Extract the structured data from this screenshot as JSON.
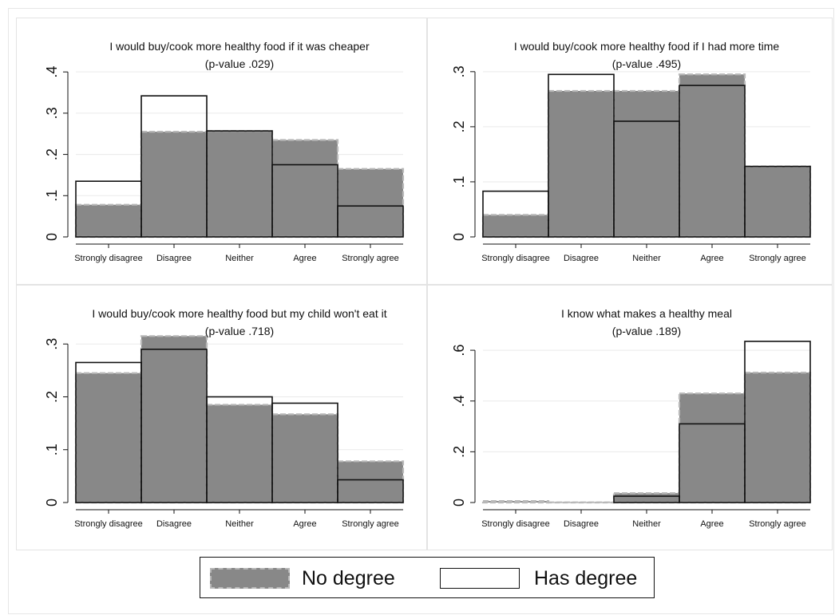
{
  "legend": {
    "no_degree": "No degree",
    "has_degree": "Has degree",
    "no_degree_color": "#888888",
    "no_degree_edge_color": "#b8b8b8",
    "has_degree_edge_color": "#111111"
  },
  "chart_data": [
    {
      "type": "bar",
      "title": "I would buy/cook more healthy food if it was cheaper",
      "subtitle": "(p-value .029)",
      "categories": [
        "Strongly disagree",
        "Disagree",
        "Neither",
        "Agree",
        "Strongly agree"
      ],
      "series": [
        {
          "name": "No degree",
          "values": [
            0.078,
            0.255,
            0.257,
            0.235,
            0.165
          ]
        },
        {
          "name": "Has degree",
          "values": [
            0.135,
            0.342,
            0.257,
            0.175,
            0.075
          ]
        }
      ],
      "yticks": [
        0,
        0.1,
        0.2,
        0.3,
        0.4
      ],
      "ytick_labels": [
        "0",
        ".1",
        ".2",
        ".3",
        ".4"
      ],
      "ylim": [
        0,
        0.41
      ],
      "grid": true
    },
    {
      "type": "bar",
      "title": "I would buy/cook more healthy food if I had more time",
      "subtitle": "(p-value .495)",
      "categories": [
        "Strongly disagree",
        "Disagree",
        "Neither",
        "Agree",
        "Strongly agree"
      ],
      "series": [
        {
          "name": "No degree",
          "values": [
            0.04,
            0.265,
            0.265,
            0.295,
            0.128
          ]
        },
        {
          "name": "Has degree",
          "values": [
            0.083,
            0.295,
            0.21,
            0.275,
            0.128
          ]
        }
      ],
      "yticks": [
        0,
        0.1,
        0.2,
        0.3
      ],
      "ytick_labels": [
        "0",
        ".1",
        ".2",
        ".3"
      ],
      "ylim": [
        0,
        0.307
      ],
      "grid": true
    },
    {
      "type": "bar",
      "title": "I would buy/cook more healthy food but my child won't eat it",
      "subtitle": "(p-value .718)",
      "categories": [
        "Strongly disagree",
        "Disagree",
        "Neither",
        "Agree",
        "Strongly agree"
      ],
      "series": [
        {
          "name": "No degree",
          "values": [
            0.245,
            0.315,
            0.185,
            0.167,
            0.078
          ]
        },
        {
          "name": "Has degree",
          "values": [
            0.265,
            0.29,
            0.2,
            0.188,
            0.043
          ]
        }
      ],
      "yticks": [
        0,
        0.1,
        0.2,
        0.3
      ],
      "ytick_labels": [
        "0",
        ".1",
        ".2",
        ".3"
      ],
      "ylim": [
        0,
        0.317
      ],
      "grid": true
    },
    {
      "type": "bar",
      "title": "I know what makes a healthy meal",
      "subtitle": "(p-value .189)",
      "categories": [
        "Strongly disagree",
        "Disagree",
        "Neither",
        "Agree",
        "Strongly agree"
      ],
      "series": [
        {
          "name": "No degree",
          "values": [
            0.006,
            0.001,
            0.037,
            0.43,
            0.512
          ]
        },
        {
          "name": "Has degree",
          "values": [
            0.0,
            0.0,
            0.025,
            0.31,
            0.635
          ]
        }
      ],
      "yticks": [
        0,
        0.2,
        0.4,
        0.6
      ],
      "ytick_labels": [
        "0",
        ".2",
        ".4",
        ".6"
      ],
      "ylim": [
        0,
        0.66
      ],
      "grid": true
    }
  ]
}
